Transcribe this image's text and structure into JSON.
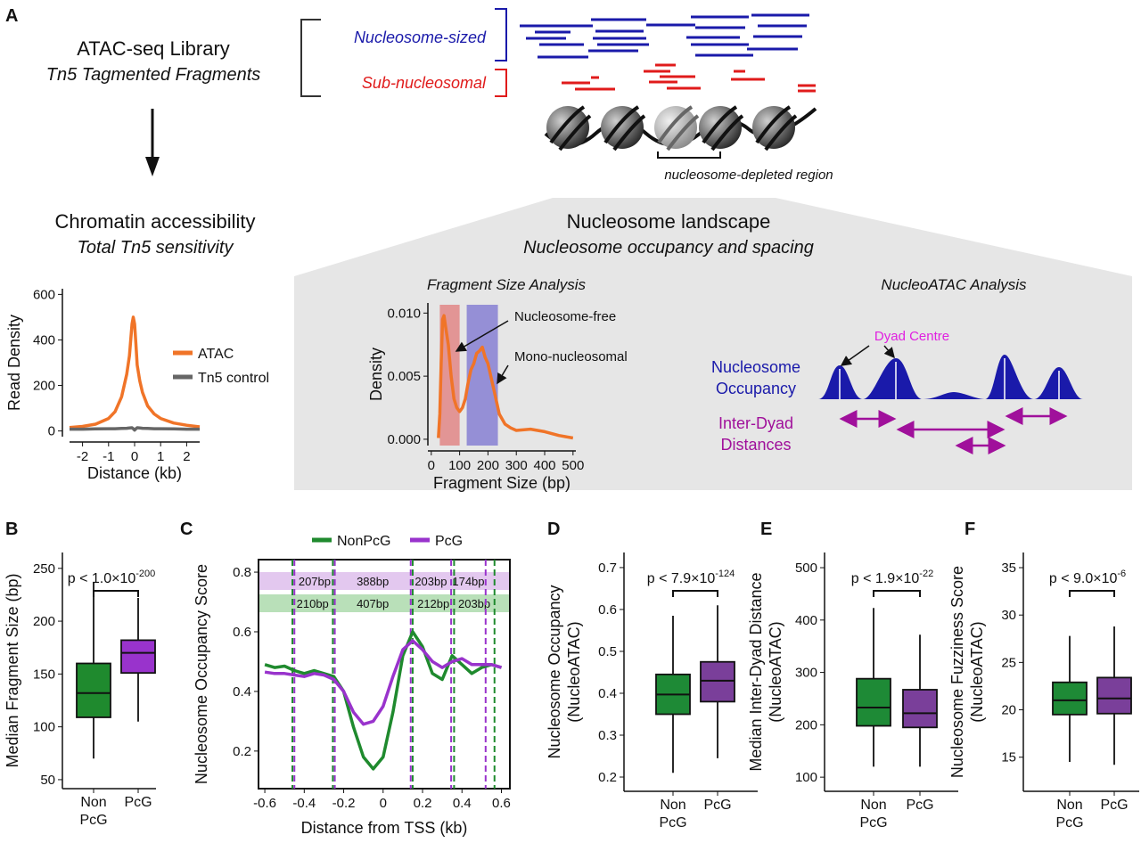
{
  "diagram": {
    "panel_label": "A",
    "library_title": "ATAC-seq Library",
    "library_subtitle": "Tn5 Tagmented Fragments",
    "nucleosome_sized": "Nucleosome-sized",
    "sub_nucleosomal": "Sub-nucleosomal",
    "ndr": "nucleosome-depleted region",
    "access_title": "Chromatin accessibility",
    "access_subtitle": "Total Tn5 sensitivity",
    "landscape_title": "Nucleosome landscape",
    "landscape_subtitle": "Nucleosome occupancy and spacing",
    "nucleoatac_title": "NucleoATAC Analysis",
    "dyad_centre": "Dyad Centre",
    "occupancy_lines": [
      "Nucleosome",
      "Occupancy"
    ],
    "interdyad_lines": [
      "Inter-Dyad",
      "Distances"
    ]
  },
  "chart_data": [
    {
      "type": "line",
      "ylabel": "Read Density",
      "xlabel": "Distance (kb)",
      "xlim": [
        -2.5,
        2.5
      ],
      "ylim": [
        -25,
        625
      ],
      "xticks": [
        -2,
        -1,
        0,
        1,
        2
      ],
      "yticks": [
        0,
        200,
        400,
        600
      ],
      "legend": "right",
      "x": [
        -2.5,
        -2,
        -1.5,
        -1,
        -0.75,
        -0.5,
        -0.3,
        -0.2,
        -0.1,
        -0.05,
        0,
        0.05,
        0.1,
        0.2,
        0.3,
        0.5,
        0.75,
        1,
        1.5,
        2,
        2.5
      ],
      "series": [
        {
          "name": "ATAC",
          "color": "#f07428",
          "values": [
            15,
            20,
            30,
            55,
            85,
            150,
            250,
            330,
            470,
            500,
            470,
            380,
            290,
            220,
            170,
            110,
            75,
            55,
            35,
            25,
            18
          ]
        },
        {
          "name": "Tn5 control",
          "color": "#666666",
          "values": [
            8,
            8,
            9,
            10,
            10,
            11,
            12,
            13,
            14,
            10,
            4,
            10,
            14,
            13,
            12,
            11,
            10,
            10,
            9,
            8,
            8
          ]
        }
      ]
    },
    {
      "type": "line",
      "title": "Fragment Size Analysis",
      "ylabel": "Density",
      "xlabel": "Fragment Size (bp)",
      "xlim": [
        -12,
        510
      ],
      "ylim": [
        -0.0005,
        0.0108
      ],
      "xticks": [
        0,
        100,
        200,
        300,
        400,
        500
      ],
      "yticks": [
        {
          "value": 0,
          "label": "0.000"
        },
        {
          "value": 0.005,
          "label": "0.005"
        },
        {
          "value": 0.01,
          "label": "0.010"
        }
      ],
      "shaded": [
        {
          "range": [
            30,
            100
          ],
          "color": "#e07a7a"
        },
        {
          "range": [
            125,
            235
          ],
          "color": "#7a72d0"
        }
      ],
      "annotations": [
        "Nucleosome-free",
        "Mono-nucleosomal"
      ],
      "x": [
        25,
        30,
        35,
        40,
        45,
        50,
        60,
        70,
        80,
        90,
        100,
        110,
        120,
        130,
        140,
        150,
        160,
        170,
        180,
        190,
        200,
        220,
        240,
        260,
        280,
        300,
        350,
        400,
        450,
        500
      ],
      "series": [
        {
          "color": "#f07428",
          "values": [
            0.0001,
            0.002,
            0.006,
            0.0095,
            0.0098,
            0.009,
            0.0075,
            0.005,
            0.0032,
            0.0025,
            0.0022,
            0.0025,
            0.0032,
            0.0045,
            0.0055,
            0.006,
            0.0068,
            0.007,
            0.0073,
            0.0065,
            0.006,
            0.004,
            0.002,
            0.0012,
            0.0009,
            0.0007,
            0.0008,
            0.0006,
            0.0003,
            0.0001
          ]
        }
      ]
    },
    {
      "type": "box",
      "panel": "B",
      "ylabel": "Median Fragment Size (bp)",
      "ylim": [
        41.5,
        265
      ],
      "yticks": [
        50,
        100,
        150,
        200,
        250
      ],
      "categories": [
        "Non PcG",
        "PcG"
      ],
      "colors": [
        "#1f8a2e",
        "#9933cc"
      ],
      "p_label": "p < 1.0×10",
      "p_exponent": "-200",
      "boxes": [
        {
          "whisker_low": 70,
          "q1": 109,
          "median": 132,
          "q3": 160,
          "whisker_high": 237
        },
        {
          "whisker_low": 105,
          "q1": 151,
          "median": 170,
          "q3": 182,
          "whisker_high": 222
        }
      ]
    },
    {
      "type": "line",
      "panel": "C",
      "ylabel": "Nucleosome Occupancy Score",
      "xlabel": "Distance from TSS (kb)",
      "xlim": [
        -0.632,
        0.643
      ],
      "ylim": [
        0.074,
        0.842
      ],
      "xticks": [
        -0.6,
        -0.4,
        -0.2,
        0,
        0.2,
        0.4,
        0.6
      ],
      "yticks": [
        0.2,
        0.4,
        0.6,
        0.8
      ],
      "legend": "top",
      "x": [
        -0.6,
        -0.55,
        -0.5,
        -0.45,
        -0.4,
        -0.35,
        -0.3,
        -0.25,
        -0.2,
        -0.15,
        -0.1,
        -0.05,
        0,
        0.05,
        0.1,
        0.15,
        0.2,
        0.25,
        0.3,
        0.35,
        0.4,
        0.45,
        0.5,
        0.55,
        0.6
      ],
      "series": [
        {
          "name": "NonPcG",
          "color": "#1f8a2e",
          "values": [
            0.49,
            0.48,
            0.485,
            0.47,
            0.46,
            0.47,
            0.46,
            0.45,
            0.4,
            0.28,
            0.18,
            0.14,
            0.18,
            0.33,
            0.52,
            0.6,
            0.55,
            0.46,
            0.44,
            0.52,
            0.49,
            0.46,
            0.48,
            0.49,
            0.48
          ],
          "dyads": [
            -0.46,
            -0.255,
            0.15,
            0.36,
            0.565
          ],
          "spacing_labels": [
            "210bp",
            "407bp",
            "212bp",
            "203bp"
          ],
          "band_color": "#b9e0b9"
        },
        {
          "name": "PcG",
          "color": "#9933cc",
          "values": [
            0.465,
            0.46,
            0.46,
            0.455,
            0.45,
            0.46,
            0.455,
            0.44,
            0.4,
            0.33,
            0.29,
            0.3,
            0.35,
            0.45,
            0.54,
            0.57,
            0.54,
            0.5,
            0.48,
            0.5,
            0.51,
            0.49,
            0.49,
            0.49,
            0.48
          ],
          "dyads": [
            -0.45,
            -0.245,
            0.14,
            0.345,
            0.52
          ],
          "spacing_labels": [
            "207bp",
            "388bp",
            "203bp",
            "174bp"
          ],
          "band_color": "#e3c8ef"
        }
      ]
    },
    {
      "type": "box",
      "panel": "D",
      "ylabel": "Nucleosome Occupancy",
      "ylabel2": "(NucleoATAC)",
      "ylim": [
        0.166,
        0.736
      ],
      "yticks": [
        0.2,
        0.3,
        0.4,
        0.5,
        0.6,
        0.7
      ],
      "categories": [
        "Non PcG",
        "PcG"
      ],
      "colors": [
        "#1e8a36",
        "#7a3f9a"
      ],
      "p_label": "p < 7.9×10",
      "p_exponent": "-124",
      "boxes": [
        {
          "whisker_low": 0.21,
          "q1": 0.35,
          "median": 0.397,
          "q3": 0.445,
          "whisker_high": 0.585
        },
        {
          "whisker_low": 0.245,
          "q1": 0.38,
          "median": 0.43,
          "q3": 0.475,
          "whisker_high": 0.61
        }
      ]
    },
    {
      "type": "box",
      "panel": "E",
      "ylabel": "Median Inter-Dyad Distance",
      "ylabel2": "(NucleoATAC)",
      "ylim": [
        73,
        529
      ],
      "yticks": [
        100,
        200,
        300,
        400,
        500
      ],
      "categories": [
        "Non PcG",
        "PcG"
      ],
      "colors": [
        "#1e8a36",
        "#7a3f9a"
      ],
      "p_label": "p < 1.9×10",
      "p_exponent": "-22",
      "boxes": [
        {
          "whisker_low": 120,
          "q1": 198,
          "median": 233,
          "q3": 288,
          "whisker_high": 423
        },
        {
          "whisker_low": 120,
          "q1": 195,
          "median": 222,
          "q3": 267,
          "whisker_high": 372
        }
      ]
    },
    {
      "type": "box",
      "panel": "F",
      "ylabel": "Nucleosome Fuzziness Score",
      "ylabel2": "(NucleoATAC)",
      "ylim": [
        11.4,
        36.6
      ],
      "yticks": [
        15,
        20,
        25,
        30,
        35
      ],
      "categories": [
        "Non PcG",
        "PcG"
      ],
      "colors": [
        "#1e8a36",
        "#7a3f9a"
      ],
      "p_label": "p < 9.0×10",
      "p_exponent": "-6",
      "boxes": [
        {
          "whisker_low": 14.5,
          "q1": 19.5,
          "median": 21,
          "q3": 22.9,
          "whisker_high": 27.8
        },
        {
          "whisker_low": 14.2,
          "q1": 19.6,
          "median": 21.2,
          "q3": 23.4,
          "whisker_high": 28.8
        }
      ]
    }
  ]
}
